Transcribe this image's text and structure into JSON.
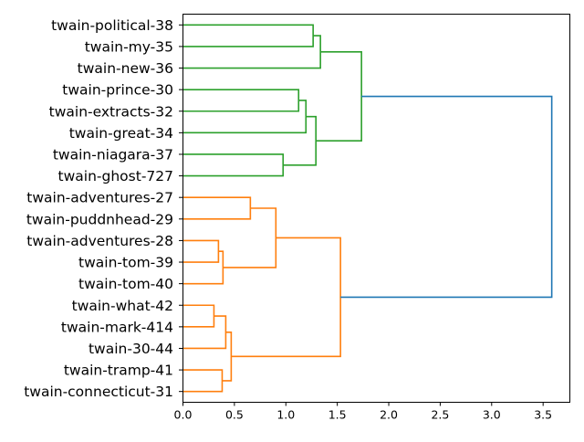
{
  "chart_data": {
    "type": "dendrogram",
    "title": "",
    "xlabel": "",
    "ylabel": "",
    "orientation": "right",
    "xlim": [
      0,
      3.76
    ],
    "xticks": [
      "0.0",
      "0.5",
      "1.0",
      "1.5",
      "2.0",
      "2.5",
      "3.0",
      "3.5"
    ],
    "xtick_values": [
      0,
      0.5,
      1.0,
      1.5,
      2.0,
      2.5,
      3.0,
      3.5
    ],
    "leaves": [
      "twain-political-38",
      "twain-my-35",
      "twain-new-36",
      "twain-prince-30",
      "twain-extracts-32",
      "twain-great-34",
      "twain-niagara-37",
      "twain-ghost-727",
      "twain-adventures-27",
      "twain-puddnhead-29",
      "twain-adventures-28",
      "twain-tom-39",
      "twain-tom-40",
      "twain-what-42",
      "twain-mark-414",
      "twain-30-44",
      "twain-tramp-41",
      "twain-connecticut-31"
    ],
    "colors": {
      "green": "#2ca02c",
      "orange": "#ff7f0e",
      "blue": "#1f77b4"
    },
    "merges": [
      {
        "a": 0,
        "b": 1,
        "height": 1.265,
        "color": "green"
      },
      {
        "a": 18,
        "b": 2,
        "height": 1.336,
        "color": "green"
      },
      {
        "a": 3,
        "b": 4,
        "height": 1.124,
        "color": "green"
      },
      {
        "a": 20,
        "b": 5,
        "height": 1.195,
        "color": "green"
      },
      {
        "a": 6,
        "b": 7,
        "height": 0.973,
        "color": "green"
      },
      {
        "a": 21,
        "b": 22,
        "height": 1.292,
        "color": "green"
      },
      {
        "a": 19,
        "b": 23,
        "height": 1.735,
        "color": "green"
      },
      {
        "a": 8,
        "b": 9,
        "height": 0.655,
        "color": "orange"
      },
      {
        "a": 10,
        "b": 11,
        "height": 0.345,
        "color": "orange"
      },
      {
        "a": 26,
        "b": 12,
        "height": 0.389,
        "color": "orange"
      },
      {
        "a": 25,
        "b": 27,
        "height": 0.903,
        "color": "orange"
      },
      {
        "a": 13,
        "b": 14,
        "height": 0.301,
        "color": "orange"
      },
      {
        "a": 29,
        "b": 15,
        "height": 0.416,
        "color": "orange"
      },
      {
        "a": 16,
        "b": 17,
        "height": 0.381,
        "color": "orange"
      },
      {
        "a": 30,
        "b": 31,
        "height": 0.469,
        "color": "orange"
      },
      {
        "a": 28,
        "b": 32,
        "height": 1.531,
        "color": "orange"
      },
      {
        "a": 24,
        "b": 33,
        "height": 3.584,
        "color": "blue"
      }
    ]
  }
}
